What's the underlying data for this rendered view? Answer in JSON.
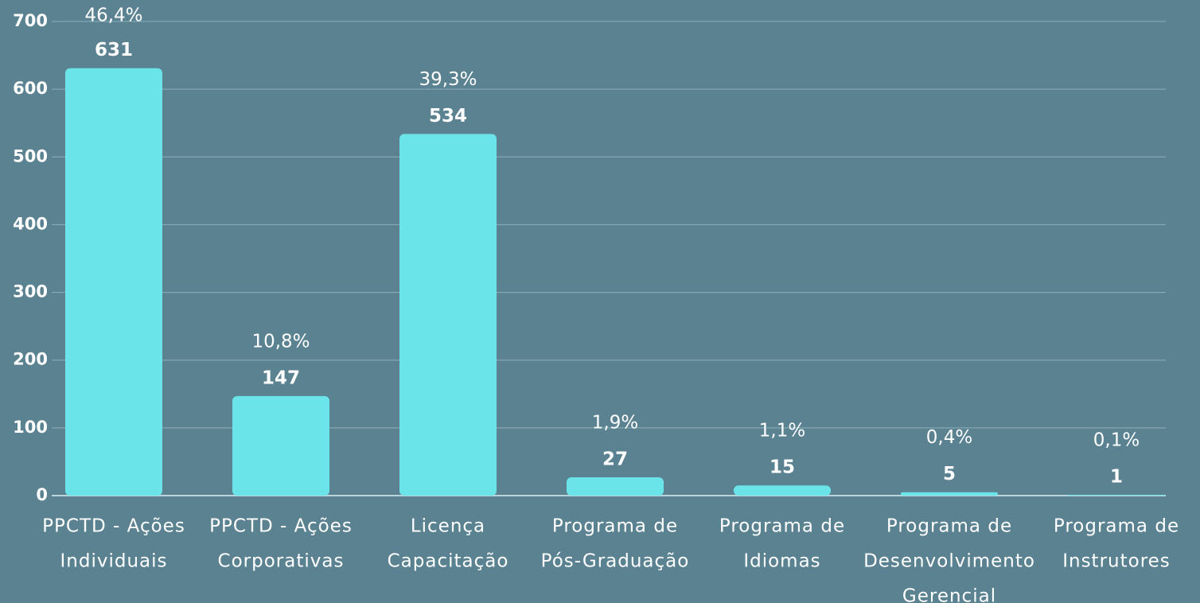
{
  "chart_data": {
    "type": "bar",
    "categories": [
      [
        "PPCTD - Ações",
        "Individuais"
      ],
      [
        "PPCTD - Ações",
        "Corporativas"
      ],
      [
        "Licença",
        "Capacitação"
      ],
      [
        "Programa de",
        "Pós-Graduação"
      ],
      [
        "Programa de",
        "Idiomas"
      ],
      [
        "Programa de",
        "Desenvolvimento",
        "Gerencial"
      ],
      [
        "Programa de",
        "Instrutores"
      ]
    ],
    "values": [
      631,
      147,
      534,
      27,
      15,
      5,
      1
    ],
    "shares": [
      46.4,
      10.8,
      39.3,
      1.9,
      1.1,
      0.4,
      0.1
    ],
    "share_labels": [
      "46,4%",
      "10,8%",
      "39,3%",
      "1,9%",
      "1,1%",
      "0,4%",
      "0,1%"
    ],
    "color": "#6ae4e8",
    "ylim": [
      0,
      700
    ],
    "yticks": [
      0,
      100,
      200,
      300,
      400,
      500,
      600,
      700
    ],
    "grid": true
  }
}
